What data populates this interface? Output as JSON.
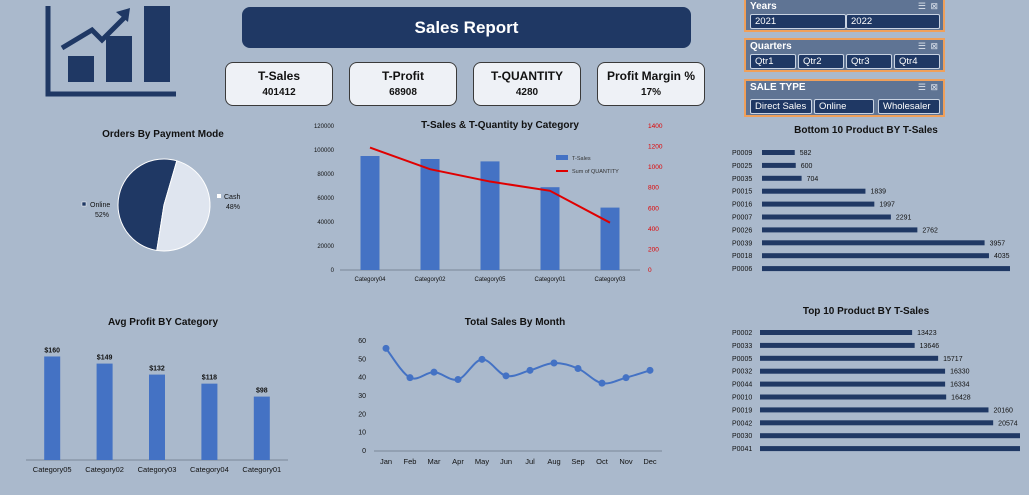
{
  "header": {
    "title": "Sales Report"
  },
  "kpis": [
    {
      "label": "T-Sales",
      "value": "401412"
    },
    {
      "label": "T-Profit",
      "value": "68908"
    },
    {
      "label": "T-QUANTITY",
      "value": "4280"
    },
    {
      "label": "Profit Margin %",
      "value": "17%"
    }
  ],
  "slicers": {
    "years": {
      "title": "Years",
      "items": [
        "2021",
        "2022"
      ]
    },
    "quarters": {
      "title": "Quarters",
      "items": [
        "Qtr1",
        "Qtr2",
        "Qtr3",
        "Qtr4"
      ]
    },
    "sale_type": {
      "title": "SALE TYPE",
      "items": [
        "Direct Sales",
        "Online",
        "Wholesaler"
      ]
    },
    "tool_icons": "filter-icons"
  },
  "colors": {
    "navy": "#1f3864",
    "blue": "#4472c4",
    "red": "#e00000",
    "bg": "#aab9cc",
    "light": "#dfe5ef"
  },
  "chart_data": [
    {
      "id": "payment",
      "type": "pie",
      "title": "Orders By Payment Mode",
      "slices": [
        {
          "label": "Online",
          "value": 52,
          "value_label": "52%"
        },
        {
          "label": "Cash",
          "value": 48,
          "value_label": "48%"
        }
      ]
    },
    {
      "id": "category",
      "type": "bar",
      "title": "T-Sales & T-Quantity by Category",
      "categories": [
        "Category04",
        "Category02",
        "Category05",
        "Category01",
        "Category03"
      ],
      "series": [
        {
          "name": "T-Sales",
          "type": "bar",
          "axis": "left",
          "values": [
            95000,
            92500,
            90500,
            69000,
            52000
          ]
        },
        {
          "name": "Sum of QUANTITY",
          "type": "line",
          "axis": "right",
          "values": [
            1190,
            980,
            860,
            770,
            460
          ]
        }
      ],
      "ylim": [
        0,
        120000
      ],
      "yticks": [
        "0",
        "20000",
        "40000",
        "60000",
        "80000",
        "100000",
        "120000"
      ],
      "y2lim": [
        0,
        1400
      ],
      "y2ticks": [
        "0",
        "200",
        "400",
        "600",
        "800",
        "1000",
        "1200",
        "1400"
      ],
      "legend": "top-right"
    },
    {
      "id": "bottom10",
      "type": "bar",
      "orientation": "horizontal",
      "title": "Bottom 10 Product BY T-Sales",
      "categories": [
        "P0009",
        "P0025",
        "P0035",
        "P0015",
        "P0016",
        "P0007",
        "P0026",
        "P0039",
        "P0018",
        "P0006"
      ],
      "values": [
        582,
        600,
        704,
        1839,
        1997,
        2291,
        2762,
        3957,
        4035,
        4532
      ],
      "xlim": [
        0,
        4800
      ]
    },
    {
      "id": "avgprofit",
      "type": "bar",
      "title": "Avg  Profit BY Category",
      "categories": [
        "Category05",
        "Category02",
        "Category03",
        "Category04",
        "Category01"
      ],
      "values": [
        160,
        149,
        132,
        118,
        98
      ],
      "value_labels": [
        "$160",
        "$149",
        "$132",
        "$118",
        "$98"
      ],
      "ylim": [
        0,
        170
      ]
    },
    {
      "id": "monthly",
      "type": "line",
      "title": "Total Sales By Month",
      "categories": [
        "Jan",
        "Feb",
        "Mar",
        "Apr",
        "May",
        "Jun",
        "Jul",
        "Aug",
        "Sep",
        "Oct",
        "Nov",
        "Dec"
      ],
      "values": [
        56,
        40,
        43,
        39,
        50,
        41,
        44,
        48,
        45,
        37,
        40,
        44
      ],
      "ylim": [
        0,
        60
      ],
      "yticks": [
        "0",
        "10",
        "20",
        "30",
        "40",
        "50",
        "60"
      ]
    },
    {
      "id": "top10",
      "type": "bar",
      "orientation": "horizontal",
      "title": "Top 10 Product BY T-Sales",
      "categories": [
        "P0002",
        "P0033",
        "P0005",
        "P0032",
        "P0044",
        "P0010",
        "P0019",
        "P0042",
        "P0030",
        "P0041"
      ],
      "values": [
        13423,
        13646,
        15717,
        16330,
        16334,
        16428,
        20160,
        20574,
        22946,
        22952
      ],
      "xlim": [
        0,
        24000
      ]
    }
  ]
}
